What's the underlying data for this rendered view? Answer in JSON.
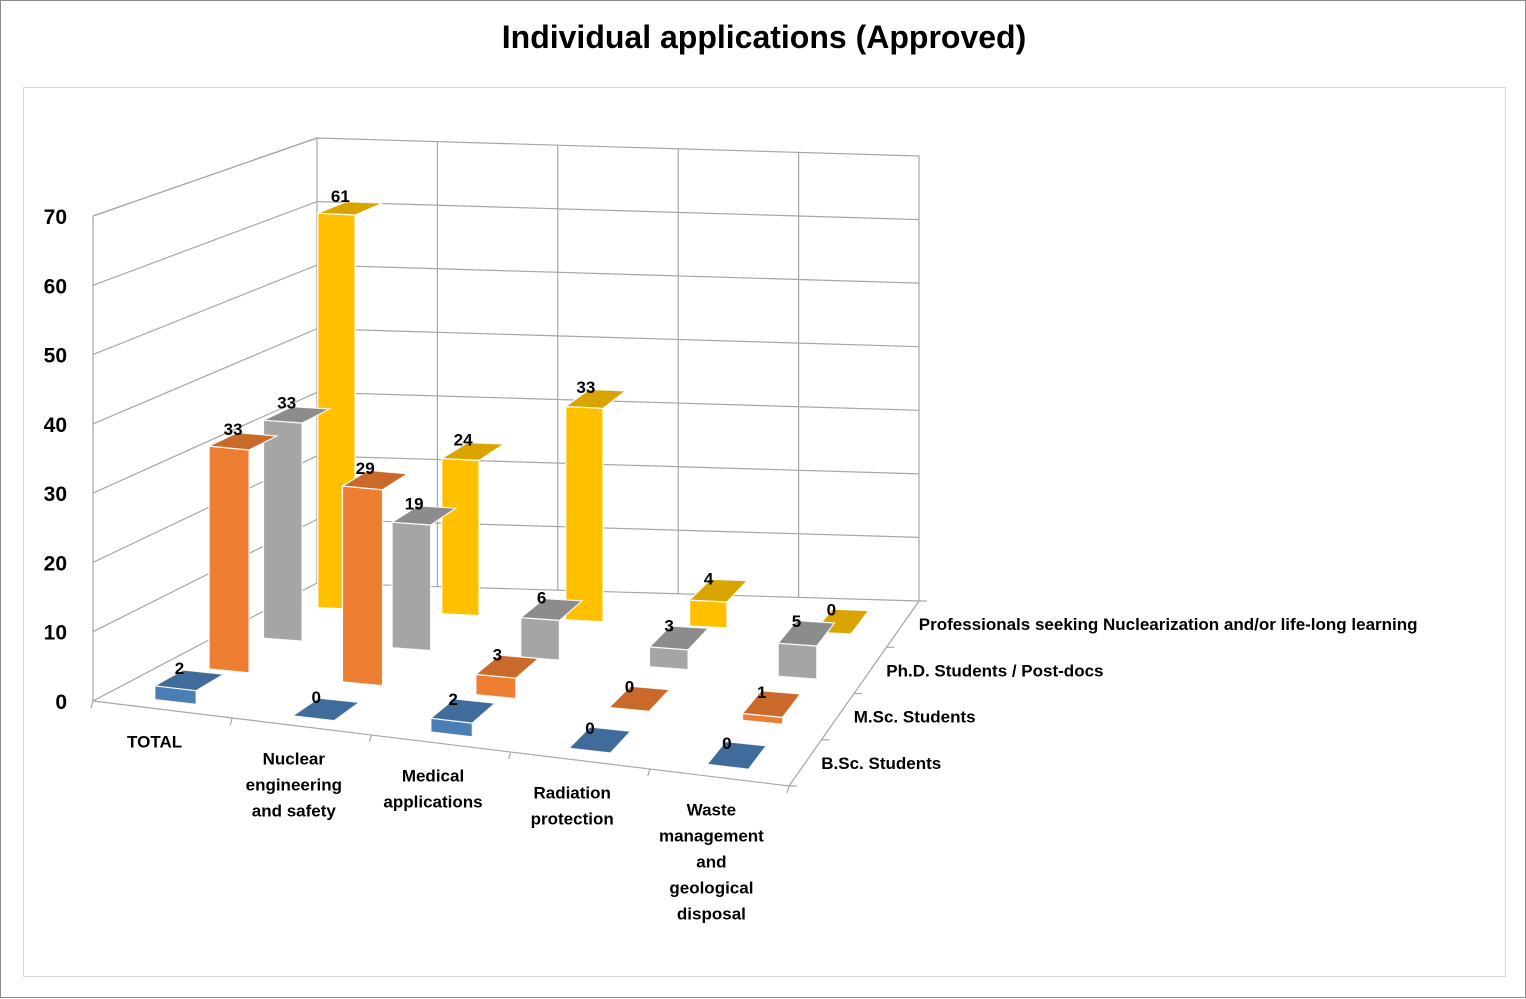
{
  "chart_data": {
    "type": "bar",
    "variant": "3d-column",
    "title": "Individual applications (Approved)",
    "categories": [
      "TOTAL",
      "Nuclear engineering and safety",
      "Medical applications",
      "Radiation protection",
      "Waste management and geological disposal"
    ],
    "category_label_lines": [
      [
        "TOTAL"
      ],
      [
        "Nuclear",
        "engineering",
        "and safety"
      ],
      [
        "Medical",
        "applications"
      ],
      [
        "Radiation",
        "protection"
      ],
      [
        "Waste",
        "management",
        "and",
        "geological",
        "disposal"
      ]
    ],
    "series": [
      {
        "name": "B.Sc. Students",
        "values": [
          2,
          0,
          2,
          0,
          0
        ],
        "color": "#4a7fb5"
      },
      {
        "name": "M.Sc. Students",
        "values": [
          33,
          29,
          3,
          0,
          1
        ],
        "color": "#ed7d31"
      },
      {
        "name": "Ph.D. Students / Post-docs",
        "values": [
          33,
          19,
          6,
          3,
          5
        ],
        "color": "#a5a5a5"
      },
      {
        "name": "Professionals seeking Nuclearization and/or life-long learning",
        "values": [
          61,
          24,
          33,
          4,
          0
        ],
        "color": "#ffc000"
      }
    ],
    "yticks": [
      0,
      10,
      20,
      30,
      40,
      50,
      60,
      70
    ],
    "ylim": [
      0,
      70
    ],
    "grid": true,
    "legend": "none",
    "data_labels": true
  }
}
